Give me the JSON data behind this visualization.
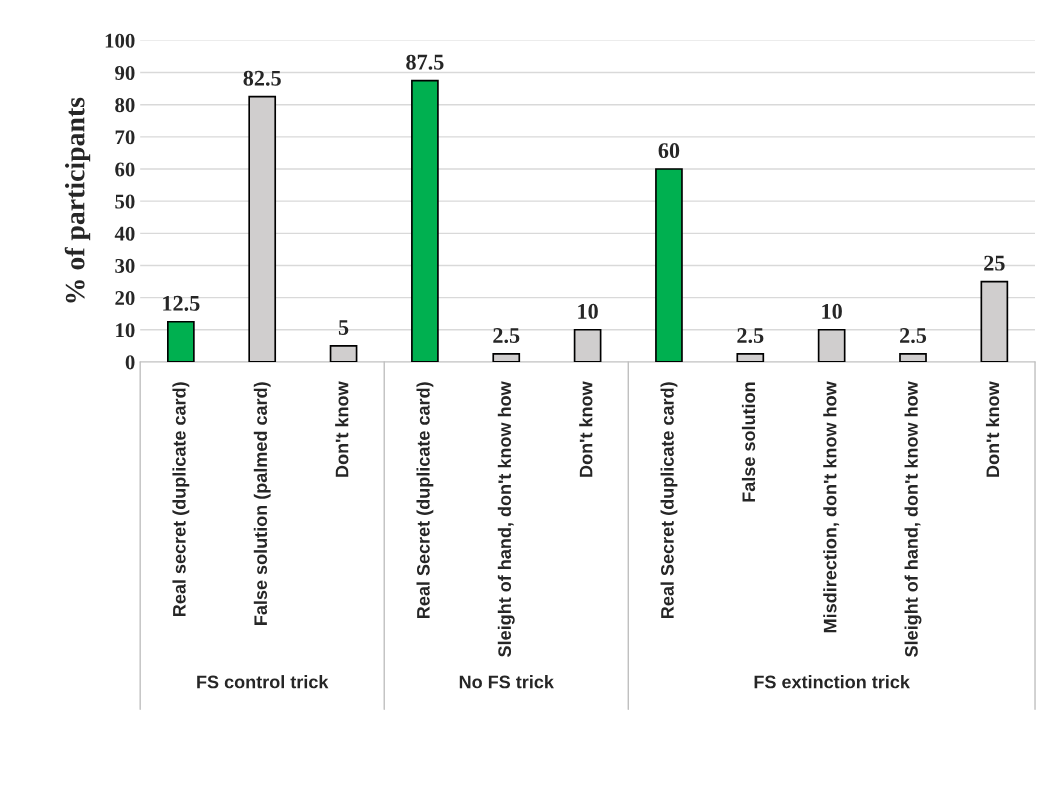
{
  "chart_data": {
    "type": "bar",
    "ylabel": "% of participants",
    "categories": [
      "Real secret (duplicate card)",
      "False solution (palmed card)",
      "Don't know",
      "Real Secret (duplicate card)",
      "Sleight of hand, don't know how",
      "Don't know",
      "Real Secret (duplicate card)",
      "False solution",
      "Misdirection, don't know how",
      "Sleight of hand, don't know how",
      "Don't know"
    ],
    "values": [
      12.5,
      82.5,
      5,
      87.5,
      2.5,
      10,
      60,
      2.5,
      10,
      2.5,
      25
    ],
    "colors": [
      "#00b050",
      "#d0cece",
      "#d0cece",
      "#00b050",
      "#d0cece",
      "#d0cece",
      "#00b050",
      "#d0cece",
      "#d0cece",
      "#d0cece",
      "#d0cece"
    ],
    "ylim": [
      0,
      100
    ],
    "yticks": [
      0,
      10,
      20,
      30,
      40,
      50,
      60,
      70,
      80,
      90,
      100
    ],
    "grid": "y",
    "data_labels": true,
    "annotations": [
      "FS control trick",
      "No FS trick",
      "FS extinction trick"
    ]
  }
}
